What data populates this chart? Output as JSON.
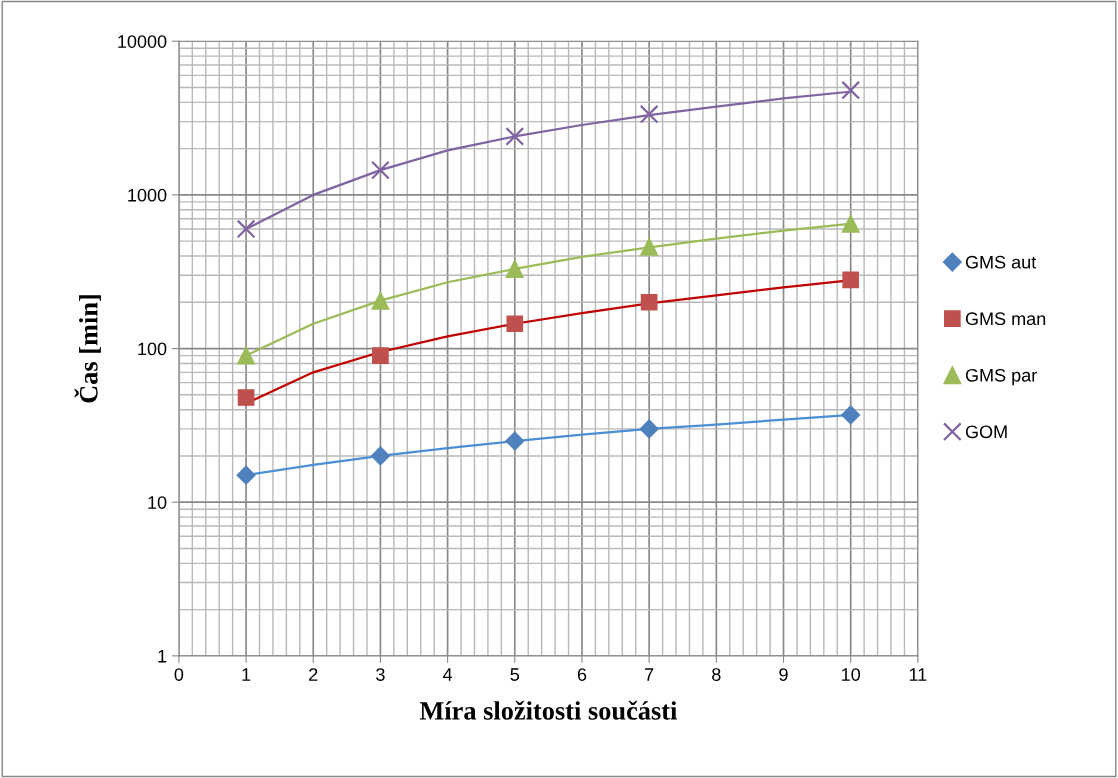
{
  "chart_data": {
    "type": "scatter",
    "xlabel": "Míra složitosti součásti",
    "ylabel": "Čas [min]",
    "log": "y",
    "grid": true,
    "legend": "right",
    "xlim": [
      0,
      11
    ],
    "xticks": [
      0,
      1,
      2,
      3,
      4,
      5,
      6,
      7,
      8,
      9,
      10,
      11
    ],
    "ylim": [
      1,
      10000
    ],
    "yticks": [
      1,
      10,
      100,
      1000,
      10000
    ],
    "x": [
      1,
      3,
      5,
      7,
      10
    ],
    "series": [
      {
        "name": "GMS aut",
        "color": "#4f81bd",
        "marker": "diamond",
        "values": [
          15,
          20,
          25,
          30,
          37
        ]
      },
      {
        "name": "GMS man",
        "color": "#c0504d",
        "marker": "square",
        "values": [
          48,
          90,
          145,
          200,
          280
        ]
      },
      {
        "name": "GMS par",
        "color": "#9bbb59",
        "marker": "triangle",
        "values": [
          90,
          205,
          330,
          460,
          650
        ]
      },
      {
        "name": "GOM",
        "color": "#8064a2",
        "marker": "cross",
        "values": [
          600,
          1450,
          2400,
          3350,
          4800
        ]
      },
      {
        "type": "line",
        "color": "#4a8fd6",
        "x": [
          1,
          2,
          3,
          4,
          5,
          6,
          7,
          8,
          9,
          10
        ],
        "values": [
          15,
          17.5,
          20,
          22.5,
          25,
          27.5,
          30,
          32,
          34.5,
          37
        ]
      },
      {
        "type": "line",
        "color": "#c00000",
        "x": [
          1,
          2,
          3,
          4,
          5,
          6,
          7,
          8,
          9,
          10
        ],
        "values": [
          44,
          70,
          95,
          120,
          145,
          170,
          197,
          222,
          250,
          278
        ]
      },
      {
        "type": "line",
        "color": "#9bbb59",
        "x": [
          1,
          2,
          3,
          4,
          5,
          6,
          7,
          8,
          9,
          10
        ],
        "values": [
          90,
          145,
          205,
          270,
          330,
          395,
          455,
          520,
          585,
          650
        ]
      },
      {
        "type": "line",
        "color": "#8064a2",
        "x": [
          1,
          2,
          3,
          4,
          5,
          6,
          7,
          8,
          9,
          10
        ],
        "values": [
          600,
          1000,
          1450,
          1950,
          2400,
          2850,
          3300,
          3750,
          4250,
          4700
        ]
      }
    ]
  }
}
